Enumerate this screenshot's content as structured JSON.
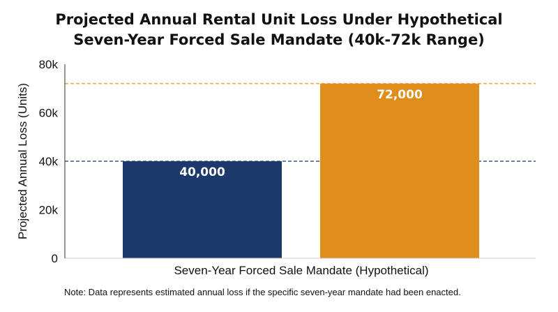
{
  "chart_data": {
    "type": "bar",
    "title": "Projected Annual Rental Unit Loss Under Hypothetical Seven-Year Forced Sale Mandate (40k-72k Range)",
    "title_lines": [
      "Projected Annual Rental Unit Loss Under Hypothetical",
      "Seven-Year Forced Sale Mandate (40k-72k Range)"
    ],
    "xlabel": "Seven-Year Forced Sale Mandate (Hypothetical)",
    "ylabel": "Projected Annual Loss (Units)",
    "ylim": [
      0,
      80000
    ],
    "yticks": [
      0,
      20000,
      40000,
      60000,
      80000
    ],
    "ytick_labels": [
      "0",
      "20k",
      "40k",
      "60k",
      "80k"
    ],
    "categories": [
      "",
      ""
    ],
    "values": [
      40000,
      72000
    ],
    "data_labels": [
      "40,000",
      "72,000"
    ],
    "bar_colors": [
      "#1b3a6b",
      "#e08e1b"
    ],
    "reference_lines": [
      {
        "value": 40000,
        "color": "#1b3a6b",
        "style": "dashed"
      },
      {
        "value": 72000,
        "color": "#e0a030",
        "style": "dashed"
      }
    ],
    "grid": false,
    "note": "Note: Data represents estimated annual loss if the specific seven-year mandate had been enacted."
  }
}
